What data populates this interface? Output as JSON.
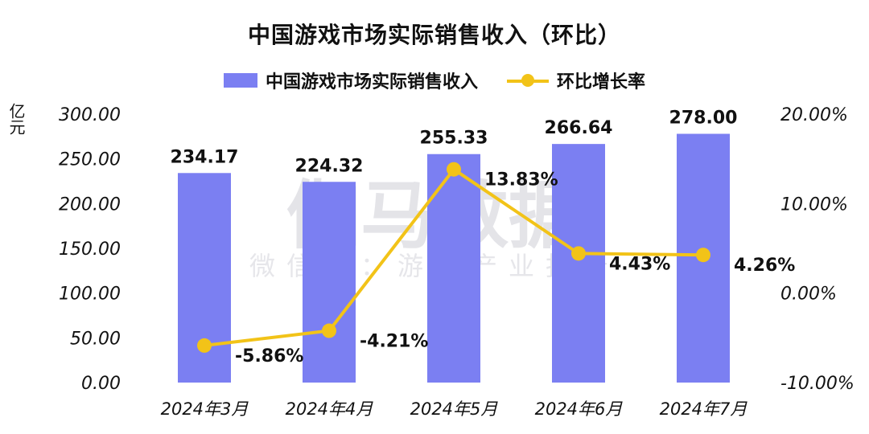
{
  "chart_data": {
    "type": "bar",
    "title": "中国游戏市场实际销售收入（环比）",
    "categories": [
      "2024年3月",
      "2024年4月",
      "2024年5月",
      "2024年6月",
      "2024年7月"
    ],
    "series": [
      {
        "name": "中国游戏市场实际销售收入",
        "type": "bar",
        "axis": "left",
        "values": [
          234.17,
          224.32,
          255.33,
          266.64,
          278.0
        ],
        "labels": [
          "234.17",
          "224.32",
          "255.33",
          "266.64",
          "278.00"
        ]
      },
      {
        "name": "环比增长率",
        "type": "line",
        "axis": "right",
        "values": [
          -5.86,
          -4.21,
          13.83,
          4.43,
          4.26
        ],
        "labels": [
          "-5.86%",
          "-4.21%",
          "13.83%",
          "4.43%",
          "4.26%"
        ]
      }
    ],
    "ylabel": "亿元",
    "ylim": [
      0,
      300
    ],
    "yticks": [
      "0.00",
      "50.00",
      "100.00",
      "150.00",
      "200.00",
      "250.00",
      "300.00"
    ],
    "y2lim": [
      -10,
      20
    ],
    "y2ticks": [
      "-10.00%",
      "0.00%",
      "10.00%",
      "20.00%"
    ],
    "legend_position": "top-center",
    "grid": false
  },
  "watermark": {
    "main": "伽马数据",
    "sub": "微信号：游戏产业报告"
  },
  "colors": {
    "bar": "#7b7ff2",
    "line": "#f2c318",
    "text": "#111111"
  }
}
